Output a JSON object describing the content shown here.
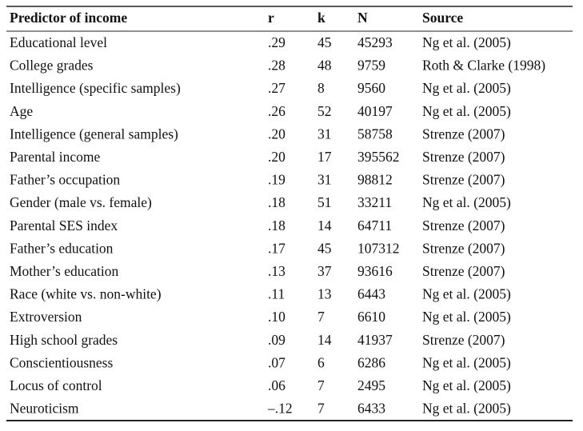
{
  "table": {
    "header": [
      "Predictor of income",
      "r",
      "k",
      "N",
      "Source"
    ],
    "rows": [
      [
        "Educational level",
        ".29",
        "45",
        "45293",
        "Ng et al. (2005)"
      ],
      [
        "College grades",
        ".28",
        "48",
        "9759",
        "Roth & Clarke (1998)"
      ],
      [
        "Intelligence (specific samples)",
        ".27",
        "8",
        "9560",
        "Ng et al. (2005)"
      ],
      [
        "Age",
        ".26",
        "52",
        "40197",
        "Ng et al. (2005)"
      ],
      [
        "Intelligence (general samples)",
        ".20",
        "31",
        "58758",
        "Strenze (2007)"
      ],
      [
        "Parental income",
        ".20",
        "17",
        "395562",
        "Strenze (2007)"
      ],
      [
        "Father’s occupation",
        ".19",
        "31",
        "98812",
        "Strenze (2007)"
      ],
      [
        "Gender (male vs. female)",
        ".18",
        "51",
        "33211",
        "Ng et al. (2005)"
      ],
      [
        "Parental SES index",
        ".18",
        "14",
        "64711",
        "Strenze (2007)"
      ],
      [
        "Father’s education",
        ".17",
        "45",
        "107312",
        "Strenze (2007)"
      ],
      [
        "Mother’s education",
        ".13",
        "37",
        "93616",
        "Strenze (2007)"
      ],
      [
        "Race (white vs. non-white)",
        ".11",
        "13",
        "6443",
        "Ng et al. (2005)"
      ],
      [
        "Extroversion",
        ".10",
        "7",
        "6610",
        "Ng et al. (2005)"
      ],
      [
        "High school grades",
        ".09",
        "14",
        "41937",
        "Strenze (2007)"
      ],
      [
        "Conscientiousness",
        ".07",
        "6",
        "6286",
        "Ng et al. (2005)"
      ],
      [
        "Locus of control",
        ".06",
        "7",
        "2495",
        "Ng et al. (2005)"
      ],
      [
        "Neuroticism",
        "–.12",
        "7",
        "6433",
        "Ng et al. (2005)"
      ]
    ]
  }
}
